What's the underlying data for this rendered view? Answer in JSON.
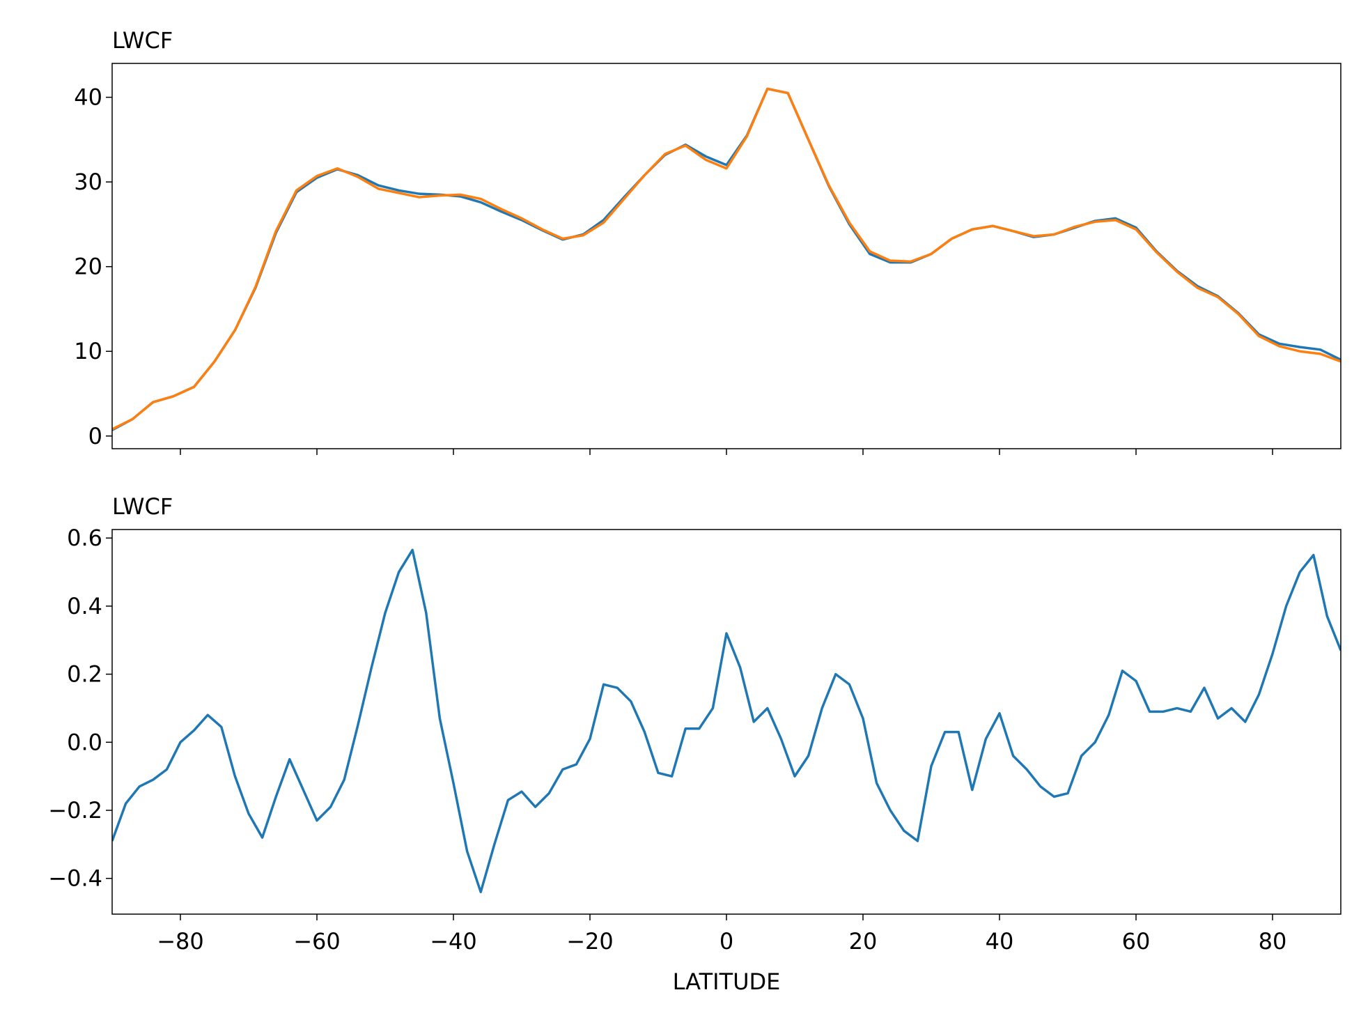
{
  "chart_data": [
    {
      "type": "line",
      "title": "LWCF",
      "x": [
        -90,
        -87,
        -84,
        -81,
        -78,
        -75,
        -72,
        -69,
        -66,
        -63,
        -60,
        -57,
        -54,
        -51,
        -48,
        -45,
        -42,
        -39,
        -36,
        -33,
        -30,
        -27,
        -24,
        -21,
        -18,
        -15,
        -12,
        -9,
        -6,
        -3,
        0,
        3,
        6,
        9,
        12,
        15,
        18,
        21,
        24,
        27,
        30,
        33,
        36,
        39,
        42,
        45,
        48,
        51,
        54,
        57,
        60,
        63,
        66,
        69,
        72,
        75,
        78,
        81,
        84,
        87,
        90
      ],
      "series": [
        {
          "color": "#1f77b4",
          "values": [
            0.7,
            2.0,
            4.0,
            4.7,
            5.8,
            8.8,
            12.5,
            17.5,
            24.0,
            28.8,
            30.5,
            31.5,
            30.8,
            29.6,
            29.0,
            28.6,
            28.5,
            28.3,
            27.6,
            26.5,
            25.5,
            24.3,
            23.2,
            23.8,
            25.5,
            28.2,
            30.8,
            33.2,
            34.4,
            33.0,
            32.0,
            35.5,
            41.0,
            40.5,
            35.0,
            29.5,
            25.0,
            21.5,
            20.5,
            20.5,
            21.5,
            23.3,
            24.4,
            24.8,
            24.2,
            23.5,
            23.8,
            24.6,
            25.4,
            25.7,
            24.6,
            21.8,
            19.5,
            17.7,
            16.5,
            14.5,
            12.0,
            10.9,
            10.5,
            10.2,
            9.0
          ]
        },
        {
          "color": "#ff7f0e",
          "values": [
            0.8,
            2.0,
            4.0,
            4.7,
            5.8,
            8.8,
            12.5,
            17.6,
            24.2,
            29.0,
            30.7,
            31.6,
            30.6,
            29.2,
            28.7,
            28.2,
            28.4,
            28.5,
            28.0,
            26.8,
            25.7,
            24.4,
            23.3,
            23.7,
            25.2,
            28.0,
            30.8,
            33.3,
            34.3,
            32.6,
            31.6,
            35.4,
            41.0,
            40.5,
            35.0,
            29.6,
            25.2,
            21.8,
            20.7,
            20.6,
            21.5,
            23.3,
            24.4,
            24.8,
            24.2,
            23.6,
            23.8,
            24.7,
            25.3,
            25.5,
            24.4,
            21.7,
            19.4,
            17.5,
            16.4,
            14.4,
            11.8,
            10.6,
            10.0,
            9.7,
            8.8
          ]
        }
      ],
      "xlim": [
        -90,
        90
      ],
      "ylim": [
        -1.5,
        44
      ],
      "yticks": [
        0,
        10,
        20,
        30,
        40
      ]
    },
    {
      "type": "line",
      "title": "LWCF",
      "x_label": "LATITUDE",
      "x": [
        -90,
        -88,
        -86,
        -84,
        -82,
        -80,
        -78,
        -76,
        -74,
        -72,
        -70,
        -68,
        -66,
        -64,
        -62,
        -60,
        -58,
        -56,
        -54,
        -52,
        -50,
        -48,
        -46,
        -44,
        -42,
        -40,
        -38,
        -36,
        -34,
        -32,
        -30,
        -28,
        -26,
        -24,
        -22,
        -20,
        -18,
        -16,
        -14,
        -12,
        -10,
        -8,
        -6,
        -4,
        -2,
        0,
        2,
        4,
        6,
        8,
        10,
        12,
        14,
        16,
        18,
        20,
        22,
        24,
        26,
        28,
        30,
        32,
        34,
        36,
        38,
        40,
        42,
        44,
        46,
        48,
        50,
        52,
        54,
        56,
        58,
        60,
        62,
        64,
        66,
        68,
        70,
        72,
        74,
        76,
        78,
        80,
        82,
        84,
        86,
        88,
        90
      ],
      "series": [
        {
          "color": "#1f77b4",
          "values": [
            -0.29,
            -0.18,
            -0.13,
            -0.11,
            -0.08,
            0.0,
            0.035,
            0.08,
            0.045,
            -0.1,
            -0.21,
            -0.28,
            -0.16,
            -0.05,
            -0.14,
            -0.23,
            -0.19,
            -0.11,
            0.05,
            0.22,
            0.38,
            0.5,
            0.565,
            0.38,
            0.07,
            -0.12,
            -0.32,
            -0.44,
            -0.3,
            -0.17,
            -0.145,
            -0.19,
            -0.15,
            -0.08,
            -0.065,
            0.01,
            0.17,
            0.16,
            0.12,
            0.03,
            -0.09,
            -0.1,
            0.04,
            0.04,
            0.1,
            0.32,
            0.22,
            0.06,
            0.1,
            0.01,
            -0.1,
            -0.04,
            0.1,
            0.2,
            0.17,
            0.07,
            -0.12,
            -0.2,
            -0.26,
            -0.29,
            -0.07,
            0.03,
            0.03,
            -0.14,
            0.01,
            0.085,
            -0.04,
            -0.08,
            -0.13,
            -0.16,
            -0.15,
            -0.04,
            0.0,
            0.08,
            0.21,
            0.18,
            0.09,
            0.09,
            0.1,
            0.09,
            0.16,
            0.07,
            0.1,
            0.06,
            0.14,
            0.26,
            0.4,
            0.5,
            0.55,
            0.37,
            0.27
          ]
        }
      ],
      "xlim": [
        -90,
        90
      ],
      "xticks": [
        {
          "value": -80,
          "label": "−80"
        },
        {
          "value": -60,
          "label": "−60"
        },
        {
          "value": -40,
          "label": "−40"
        },
        {
          "value": -20,
          "label": "−20"
        },
        0,
        20,
        40,
        60,
        80
      ],
      "ylim": [
        -0.505,
        0.625
      ],
      "yticks": [
        {
          "value": -0.4,
          "label": "−0.4"
        },
        {
          "value": -0.2,
          "label": "−0.2"
        },
        {
          "value": 0,
          "label": "0.0"
        },
        {
          "value": 0.2,
          "label": "0.2"
        },
        {
          "value": 0.4,
          "label": "0.4"
        },
        {
          "value": 0.6,
          "label": "0.6"
        }
      ]
    }
  ]
}
